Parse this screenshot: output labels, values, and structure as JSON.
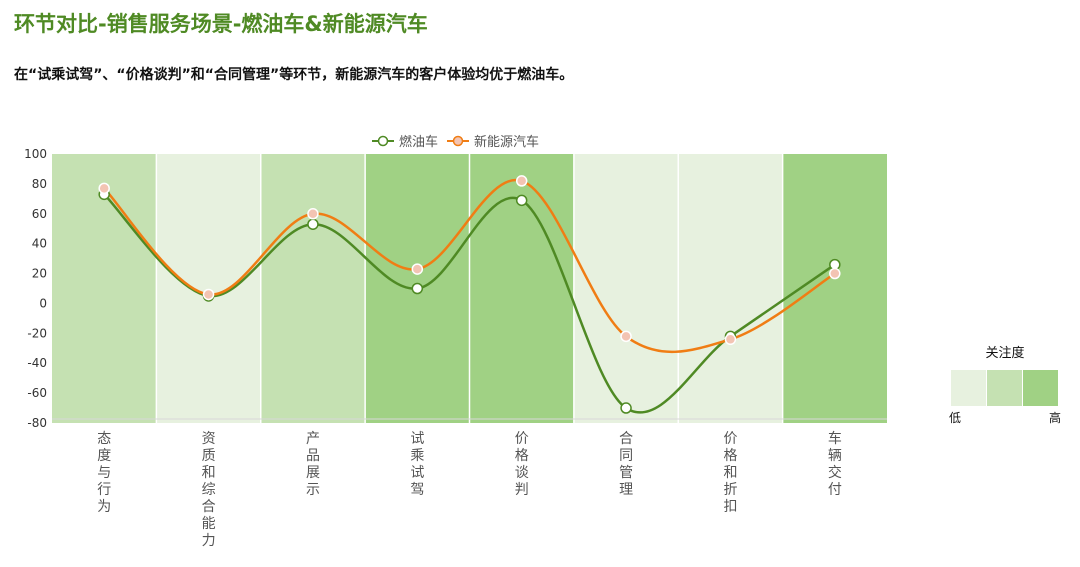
{
  "header": {
    "title": "环节对比-销售服务场景-燃油车&新能源汽车",
    "subtitle": "在“试乘试驾”、“价格谈判”和“合同管理”等环节，新能源汽车的客户体验均优于燃油车。"
  },
  "colors": {
    "title": "#4f8a24",
    "fuel_line": "#4f8a24",
    "ev_line": "#f07d14",
    "ev_marker_fill": "#f3c4b3",
    "band_low": "#e7f1df",
    "band_mid": "#c5e1b2",
    "band_high": "#a0d184"
  },
  "chart_data": {
    "type": "line",
    "categories": [
      "态度与行为",
      "资质和综合能力",
      "产品展示",
      "试乘试驾",
      "价格谈判",
      "合同管理",
      "价格和折扣",
      "车辆交付"
    ],
    "series": [
      {
        "name": "燃油车",
        "values": [
          73,
          5,
          53,
          10,
          69,
          -70,
          -22,
          26
        ]
      },
      {
        "name": "新能源汽车",
        "values": [
          77,
          6,
          60,
          23,
          82,
          -22,
          -24,
          20
        ]
      }
    ],
    "ylim": [
      -80,
      100
    ],
    "yticks": [
      100,
      80,
      60,
      40,
      20,
      0,
      -20,
      -40,
      -60,
      -80
    ],
    "legend_position": "top-center",
    "attention_levels": [
      "中",
      "低",
      "中",
      "高",
      "高",
      "低",
      "低",
      "高"
    ],
    "attention_scale": {
      "title": "关注度",
      "low_label": "低",
      "high_label": "高"
    }
  }
}
